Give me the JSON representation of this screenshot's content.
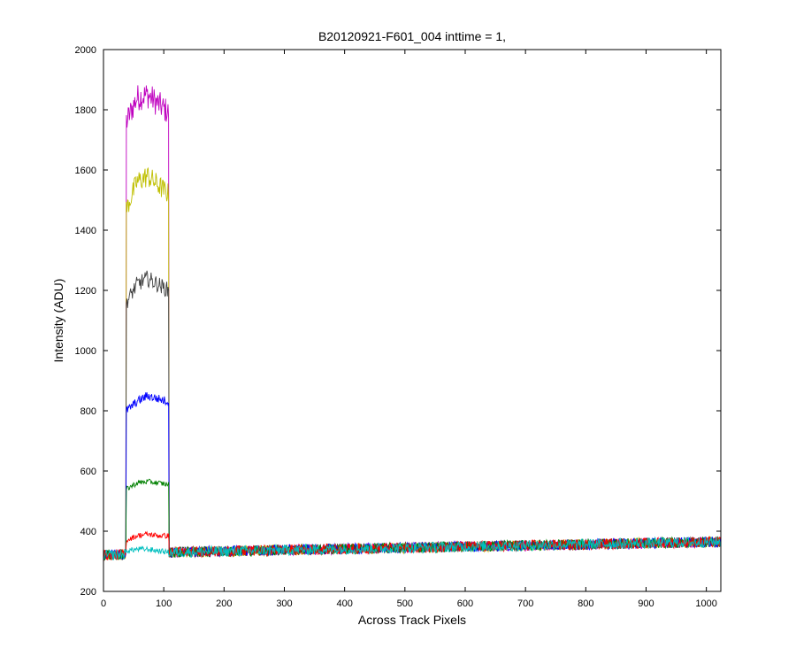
{
  "chart_data": {
    "type": "line",
    "title": "B20120921-F601_004 inttime = 1,",
    "xlabel": "Across Track Pixels",
    "ylabel": "Intensity (ADU)",
    "xlim": [
      0,
      1024
    ],
    "ylim": [
      200,
      2000
    ],
    "xticks": [
      0,
      100,
      200,
      300,
      400,
      500,
      600,
      700,
      800,
      900,
      1000
    ],
    "yticks": [
      200,
      400,
      600,
      800,
      1000,
      1200,
      1400,
      1600,
      1800,
      2000
    ],
    "grid": false,
    "noise_amplitude": 18,
    "baseline": {
      "x": [
        0,
        110,
        1024
      ],
      "y": [
        320,
        330,
        365
      ]
    },
    "series": [
      {
        "color": "#bf00bf",
        "plateau": [
          1760,
          1840,
          1850,
          1820,
          1790
        ],
        "x_range": [
          38,
          108
        ]
      },
      {
        "color": "#bfbf00",
        "plateau": [
          1470,
          1560,
          1580,
          1550,
          1520
        ],
        "x_range": [
          38,
          108
        ]
      },
      {
        "color": "#404040",
        "plateau": [
          1160,
          1220,
          1240,
          1220,
          1200
        ],
        "x_range": [
          38,
          108
        ]
      },
      {
        "color": "#0000ff",
        "plateau": [
          800,
          830,
          850,
          840,
          830
        ],
        "x_range": [
          38,
          108
        ]
      },
      {
        "color": "#008000",
        "plateau": [
          540,
          560,
          565,
          560,
          555
        ],
        "x_range": [
          38,
          108
        ]
      },
      {
        "color": "#ff0000",
        "plateau": [
          370,
          385,
          390,
          385,
          385
        ],
        "x_range": [
          38,
          108
        ]
      },
      {
        "color": "#00bfbf",
        "plateau": [
          335,
          340,
          340,
          335,
          330
        ],
        "x_range": [
          38,
          108
        ]
      }
    ]
  }
}
